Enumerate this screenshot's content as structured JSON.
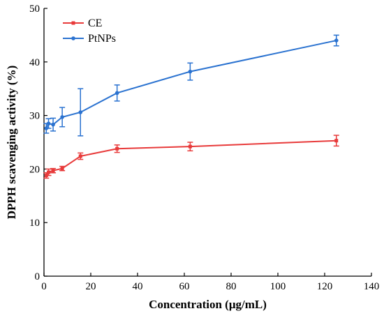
{
  "chart_data": {
    "type": "line",
    "xlabel": "Concentration (μg/mL)",
    "ylabel": "DPPH scavenging activity (%)",
    "xlim": [
      0,
      140
    ],
    "ylim": [
      0,
      50
    ],
    "xticks": [
      0,
      20,
      40,
      60,
      80,
      100,
      120,
      140
    ],
    "yticks": [
      0,
      10,
      20,
      30,
      40,
      50
    ],
    "grid": false,
    "legend_position": "top-left",
    "x": [
      0.98,
      1.95,
      3.9,
      7.8,
      15.6,
      31.25,
      62.5,
      125
    ],
    "series": [
      {
        "name": "CE",
        "color": "#e83a3a",
        "marker": "square",
        "values": [
          18.8,
          19.4,
          19.7,
          20.1,
          22.4,
          23.8,
          24.2,
          25.3
        ],
        "errors": [
          0.5,
          0.6,
          0.4,
          0.4,
          0.6,
          0.7,
          0.8,
          1.0
        ]
      },
      {
        "name": "PtNPs",
        "color": "#2a72d0",
        "marker": "circle",
        "values": [
          27.6,
          28.5,
          28.3,
          29.7,
          30.6,
          34.2,
          38.2,
          44.0
        ],
        "errors": [
          0.9,
          0.9,
          1.2,
          1.8,
          4.4,
          1.5,
          1.6,
          1.0
        ]
      }
    ]
  }
}
